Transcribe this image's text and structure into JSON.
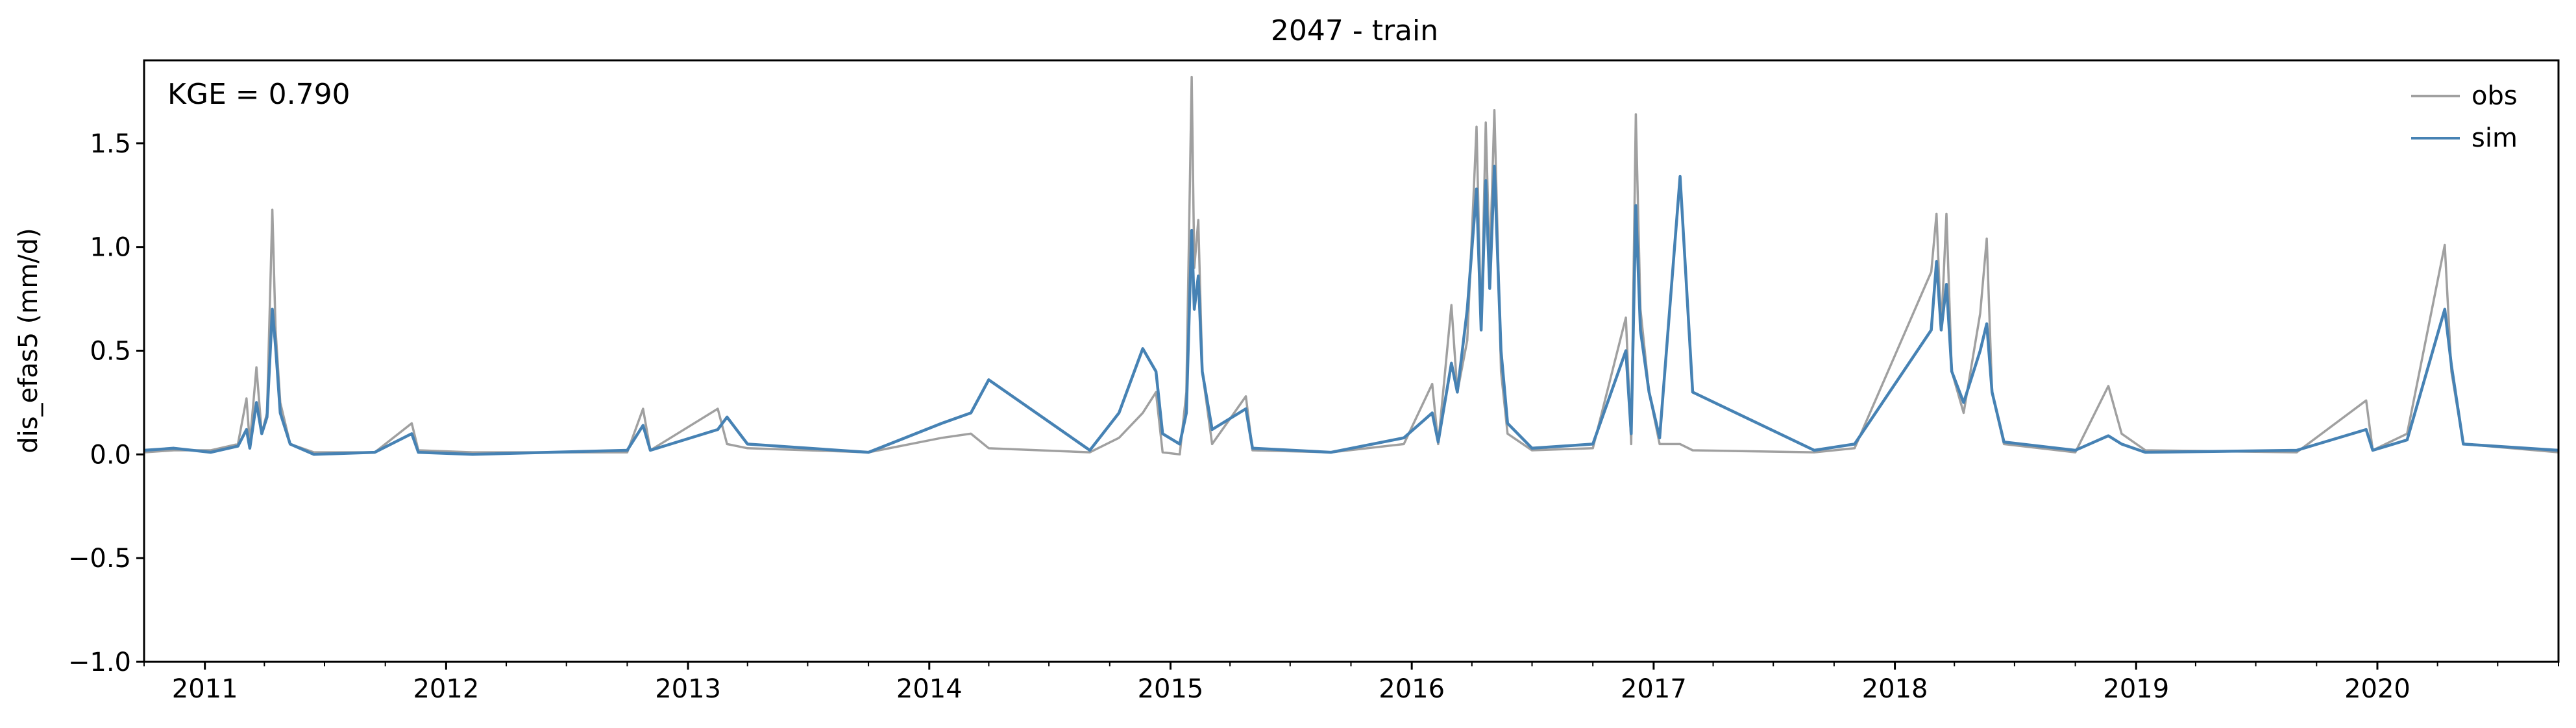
{
  "chart_data": {
    "type": "line",
    "title": "2047 - train",
    "ylabel": "dis_efas5 (mm/d)",
    "xlabel": "",
    "annotation": "KGE = 0.790",
    "ylim": [
      -1.0,
      1.9
    ],
    "xlim": [
      "2010-10-01",
      "2020-10-01"
    ],
    "yticks": [
      {
        "value": 1.5,
        "label": "1.5"
      },
      {
        "value": 1.0,
        "label": "1.0"
      },
      {
        "value": 0.5,
        "label": "0.5"
      },
      {
        "value": 0.0,
        "label": "0.0"
      },
      {
        "value": -0.5,
        "label": "−0.5"
      },
      {
        "value": -1.0,
        "label": "−1.0"
      }
    ],
    "xticks": [
      {
        "value": "2011-01-01",
        "label": "2011"
      },
      {
        "value": "2012-01-01",
        "label": "2012"
      },
      {
        "value": "2013-01-01",
        "label": "2013"
      },
      {
        "value": "2014-01-01",
        "label": "2014"
      },
      {
        "value": "2015-01-01",
        "label": "2015"
      },
      {
        "value": "2016-01-01",
        "label": "2016"
      },
      {
        "value": "2017-01-01",
        "label": "2017"
      },
      {
        "value": "2018-01-01",
        "label": "2018"
      },
      {
        "value": "2019-01-01",
        "label": "2019"
      },
      {
        "value": "2020-01-01",
        "label": "2020"
      }
    ],
    "grid": false,
    "legend_position": "top-right",
    "series": [
      {
        "name": "obs",
        "color": "#a0a0a0",
        "points": [
          [
            "2010-10-01",
            0.01
          ],
          [
            "2010-11-15",
            0.02
          ],
          [
            "2011-01-10",
            0.02
          ],
          [
            "2011-02-20",
            0.05
          ],
          [
            "2011-03-05",
            0.27
          ],
          [
            "2011-03-10",
            0.05
          ],
          [
            "2011-03-20",
            0.42
          ],
          [
            "2011-03-28",
            0.1
          ],
          [
            "2011-04-05",
            0.2
          ],
          [
            "2011-04-13",
            1.18
          ],
          [
            "2011-04-18",
            0.6
          ],
          [
            "2011-04-25",
            0.25
          ],
          [
            "2011-05-10",
            0.05
          ],
          [
            "2011-06-15",
            0.01
          ],
          [
            "2011-09-15",
            0.01
          ],
          [
            "2011-11-10",
            0.15
          ],
          [
            "2011-11-20",
            0.02
          ],
          [
            "2012-02-10",
            0.01
          ],
          [
            "2012-10-01",
            0.01
          ],
          [
            "2012-10-25",
            0.22
          ],
          [
            "2012-11-05",
            0.02
          ],
          [
            "2013-02-15",
            0.22
          ],
          [
            "2013-03-01",
            0.05
          ],
          [
            "2013-04-01",
            0.03
          ],
          [
            "2013-10-01",
            0.01
          ],
          [
            "2014-01-20",
            0.08
          ],
          [
            "2014-03-05",
            0.1
          ],
          [
            "2014-04-01",
            0.03
          ],
          [
            "2014-09-01",
            0.01
          ],
          [
            "2014-10-15",
            0.08
          ],
          [
            "2014-11-20",
            0.2
          ],
          [
            "2014-12-10",
            0.3
          ],
          [
            "2014-12-20",
            0.01
          ],
          [
            "2015-01-15",
            0.0
          ],
          [
            "2015-01-25",
            0.3
          ],
          [
            "2015-02-02",
            1.82
          ],
          [
            "2015-02-06",
            0.9
          ],
          [
            "2015-02-12",
            1.13
          ],
          [
            "2015-02-18",
            0.4
          ],
          [
            "2015-03-05",
            0.05
          ],
          [
            "2015-04-25",
            0.28
          ],
          [
            "2015-05-05",
            0.02
          ],
          [
            "2015-09-01",
            0.01
          ],
          [
            "2015-12-20",
            0.05
          ],
          [
            "2016-02-01",
            0.34
          ],
          [
            "2016-02-10",
            0.05
          ],
          [
            "2016-03-01",
            0.72
          ],
          [
            "2016-03-10",
            0.3
          ],
          [
            "2016-03-25",
            0.55
          ],
          [
            "2016-04-08",
            1.58
          ],
          [
            "2016-04-15",
            0.6
          ],
          [
            "2016-04-22",
            1.6
          ],
          [
            "2016-04-28",
            0.9
          ],
          [
            "2016-05-05",
            1.66
          ],
          [
            "2016-05-15",
            0.4
          ],
          [
            "2016-05-25",
            0.1
          ],
          [
            "2016-07-01",
            0.02
          ],
          [
            "2016-10-01",
            0.03
          ],
          [
            "2016-11-20",
            0.66
          ],
          [
            "2016-11-28",
            0.05
          ],
          [
            "2016-12-05",
            1.64
          ],
          [
            "2016-12-12",
            0.7
          ],
          [
            "2016-12-25",
            0.3
          ],
          [
            "2017-01-10",
            0.05
          ],
          [
            "2017-02-10",
            0.05
          ],
          [
            "2017-03-01",
            0.02
          ],
          [
            "2017-09-01",
            0.01
          ],
          [
            "2017-11-01",
            0.03
          ],
          [
            "2018-02-25",
            0.88
          ],
          [
            "2018-03-05",
            1.16
          ],
          [
            "2018-03-12",
            0.6
          ],
          [
            "2018-03-20",
            1.16
          ],
          [
            "2018-03-28",
            0.4
          ],
          [
            "2018-04-15",
            0.2
          ],
          [
            "2018-05-10",
            0.68
          ],
          [
            "2018-05-20",
            1.04
          ],
          [
            "2018-05-28",
            0.3
          ],
          [
            "2018-06-15",
            0.05
          ],
          [
            "2018-10-01",
            0.01
          ],
          [
            "2018-11-20",
            0.33
          ],
          [
            "2018-12-10",
            0.1
          ],
          [
            "2019-01-15",
            0.02
          ],
          [
            "2019-09-01",
            0.01
          ],
          [
            "2019-12-15",
            0.26
          ],
          [
            "2019-12-25",
            0.02
          ],
          [
            "2020-02-15",
            0.1
          ],
          [
            "2020-04-12",
            1.01
          ],
          [
            "2020-04-22",
            0.4
          ],
          [
            "2020-05-10",
            0.05
          ],
          [
            "2020-10-01",
            0.01
          ]
        ]
      },
      {
        "name": "sim",
        "color": "#4682b4",
        "points": [
          [
            "2010-10-01",
            0.02
          ],
          [
            "2010-11-15",
            0.03
          ],
          [
            "2011-01-10",
            0.01
          ],
          [
            "2011-02-20",
            0.04
          ],
          [
            "2011-03-05",
            0.12
          ],
          [
            "2011-03-10",
            0.03
          ],
          [
            "2011-03-20",
            0.25
          ],
          [
            "2011-03-28",
            0.1
          ],
          [
            "2011-04-05",
            0.18
          ],
          [
            "2011-04-13",
            0.7
          ],
          [
            "2011-04-18",
            0.52
          ],
          [
            "2011-04-25",
            0.2
          ],
          [
            "2011-05-10",
            0.05
          ],
          [
            "2011-06-15",
            0.0
          ],
          [
            "2011-09-15",
            0.01
          ],
          [
            "2011-11-10",
            0.1
          ],
          [
            "2011-11-20",
            0.01
          ],
          [
            "2012-02-10",
            0.0
          ],
          [
            "2012-10-01",
            0.02
          ],
          [
            "2012-10-25",
            0.14
          ],
          [
            "2012-11-05",
            0.02
          ],
          [
            "2013-02-15",
            0.12
          ],
          [
            "2013-03-01",
            0.18
          ],
          [
            "2013-04-01",
            0.05
          ],
          [
            "2013-10-01",
            0.01
          ],
          [
            "2014-01-20",
            0.15
          ],
          [
            "2014-03-05",
            0.2
          ],
          [
            "2014-04-01",
            0.36
          ],
          [
            "2014-09-01",
            0.02
          ],
          [
            "2014-10-15",
            0.2
          ],
          [
            "2014-11-20",
            0.51
          ],
          [
            "2014-12-10",
            0.4
          ],
          [
            "2014-12-20",
            0.1
          ],
          [
            "2015-01-15",
            0.05
          ],
          [
            "2015-01-25",
            0.2
          ],
          [
            "2015-02-02",
            1.08
          ],
          [
            "2015-02-06",
            0.7
          ],
          [
            "2015-02-12",
            0.86
          ],
          [
            "2015-02-18",
            0.4
          ],
          [
            "2015-03-05",
            0.12
          ],
          [
            "2015-04-25",
            0.22
          ],
          [
            "2015-05-05",
            0.03
          ],
          [
            "2015-09-01",
            0.01
          ],
          [
            "2015-12-20",
            0.08
          ],
          [
            "2016-02-01",
            0.2
          ],
          [
            "2016-02-10",
            0.06
          ],
          [
            "2016-03-01",
            0.44
          ],
          [
            "2016-03-10",
            0.3
          ],
          [
            "2016-03-25",
            0.7
          ],
          [
            "2016-04-08",
            1.28
          ],
          [
            "2016-04-15",
            0.6
          ],
          [
            "2016-04-22",
            1.32
          ],
          [
            "2016-04-28",
            0.8
          ],
          [
            "2016-05-05",
            1.39
          ],
          [
            "2016-05-15",
            0.5
          ],
          [
            "2016-05-25",
            0.15
          ],
          [
            "2016-07-01",
            0.03
          ],
          [
            "2016-10-01",
            0.05
          ],
          [
            "2016-11-20",
            0.5
          ],
          [
            "2016-11-28",
            0.1
          ],
          [
            "2016-12-05",
            1.2
          ],
          [
            "2016-12-12",
            0.6
          ],
          [
            "2016-12-25",
            0.3
          ],
          [
            "2017-01-10",
            0.08
          ],
          [
            "2017-02-10",
            1.34
          ],
          [
            "2017-03-01",
            0.3
          ],
          [
            "2017-09-01",
            0.02
          ],
          [
            "2017-11-01",
            0.05
          ],
          [
            "2018-02-25",
            0.6
          ],
          [
            "2018-03-05",
            0.93
          ],
          [
            "2018-03-12",
            0.6
          ],
          [
            "2018-03-20",
            0.82
          ],
          [
            "2018-03-28",
            0.4
          ],
          [
            "2018-04-15",
            0.25
          ],
          [
            "2018-05-10",
            0.5
          ],
          [
            "2018-05-20",
            0.63
          ],
          [
            "2018-05-28",
            0.3
          ],
          [
            "2018-06-15",
            0.06
          ],
          [
            "2018-10-01",
            0.02
          ],
          [
            "2018-11-20",
            0.09
          ],
          [
            "2018-12-10",
            0.05
          ],
          [
            "2019-01-15",
            0.01
          ],
          [
            "2019-09-01",
            0.02
          ],
          [
            "2019-12-15",
            0.12
          ],
          [
            "2019-12-25",
            0.02
          ],
          [
            "2020-02-15",
            0.07
          ],
          [
            "2020-04-12",
            0.7
          ],
          [
            "2020-04-22",
            0.43
          ],
          [
            "2020-05-10",
            0.05
          ],
          [
            "2020-10-01",
            0.02
          ]
        ]
      }
    ]
  }
}
